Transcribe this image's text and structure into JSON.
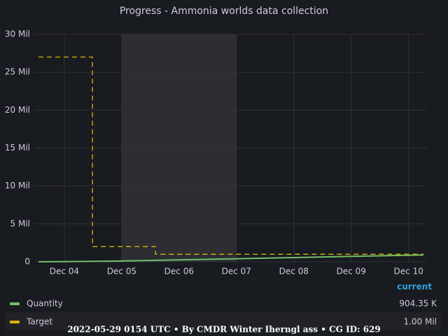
{
  "chart_data": {
    "type": "line",
    "title": "Progress - Ammonia worlds data collection",
    "xlim": [
      3.55,
      10.26
    ],
    "xticks": [
      {
        "value": 4,
        "label": "Dec 04"
      },
      {
        "value": 5,
        "label": "Dec 05"
      },
      {
        "value": 6,
        "label": "Dec 06"
      },
      {
        "value": 7,
        "label": "Dec 07"
      },
      {
        "value": 8,
        "label": "Dec 08"
      },
      {
        "value": 9,
        "label": "Dec 09"
      },
      {
        "value": 10,
        "label": "Dec 10"
      }
    ],
    "ylim": [
      0,
      30000000
    ],
    "yticks": [
      {
        "value": 0,
        "label": "0"
      },
      {
        "value": 5000000,
        "label": "5 Mil"
      },
      {
        "value": 10000000,
        "label": "10 Mil"
      },
      {
        "value": 15000000,
        "label": "15 Mil"
      },
      {
        "value": 20000000,
        "label": "20 Mil"
      },
      {
        "value": 25000000,
        "label": "25 Mil"
      },
      {
        "value": 30000000,
        "label": "30 Mil"
      }
    ],
    "grid": true,
    "region": [
      5,
      7
    ],
    "legend_header": "current",
    "series": [
      {
        "name": "Quantity",
        "color": "#73bf69",
        "dashed": false,
        "current": "904.35 K",
        "x": [
          3.55,
          5,
          6,
          7,
          8,
          9,
          10.26
        ],
        "values": [
          0,
          100000,
          250000,
          400000,
          550000,
          720000,
          904350
        ]
      },
      {
        "name": "Target",
        "color": "#e0b400",
        "dashed": true,
        "current": "1.00 Mil",
        "x": [
          3.55,
          4.49,
          4.49,
          5.59,
          5.59,
          10.26
        ],
        "values": [
          27000000,
          27000000,
          2000000,
          2000000,
          1000000,
          1000000
        ]
      }
    ],
    "footer": "2022-05-29 0154 UTC • By CMDR Winter Iherngl ass • CG ID: 629"
  }
}
